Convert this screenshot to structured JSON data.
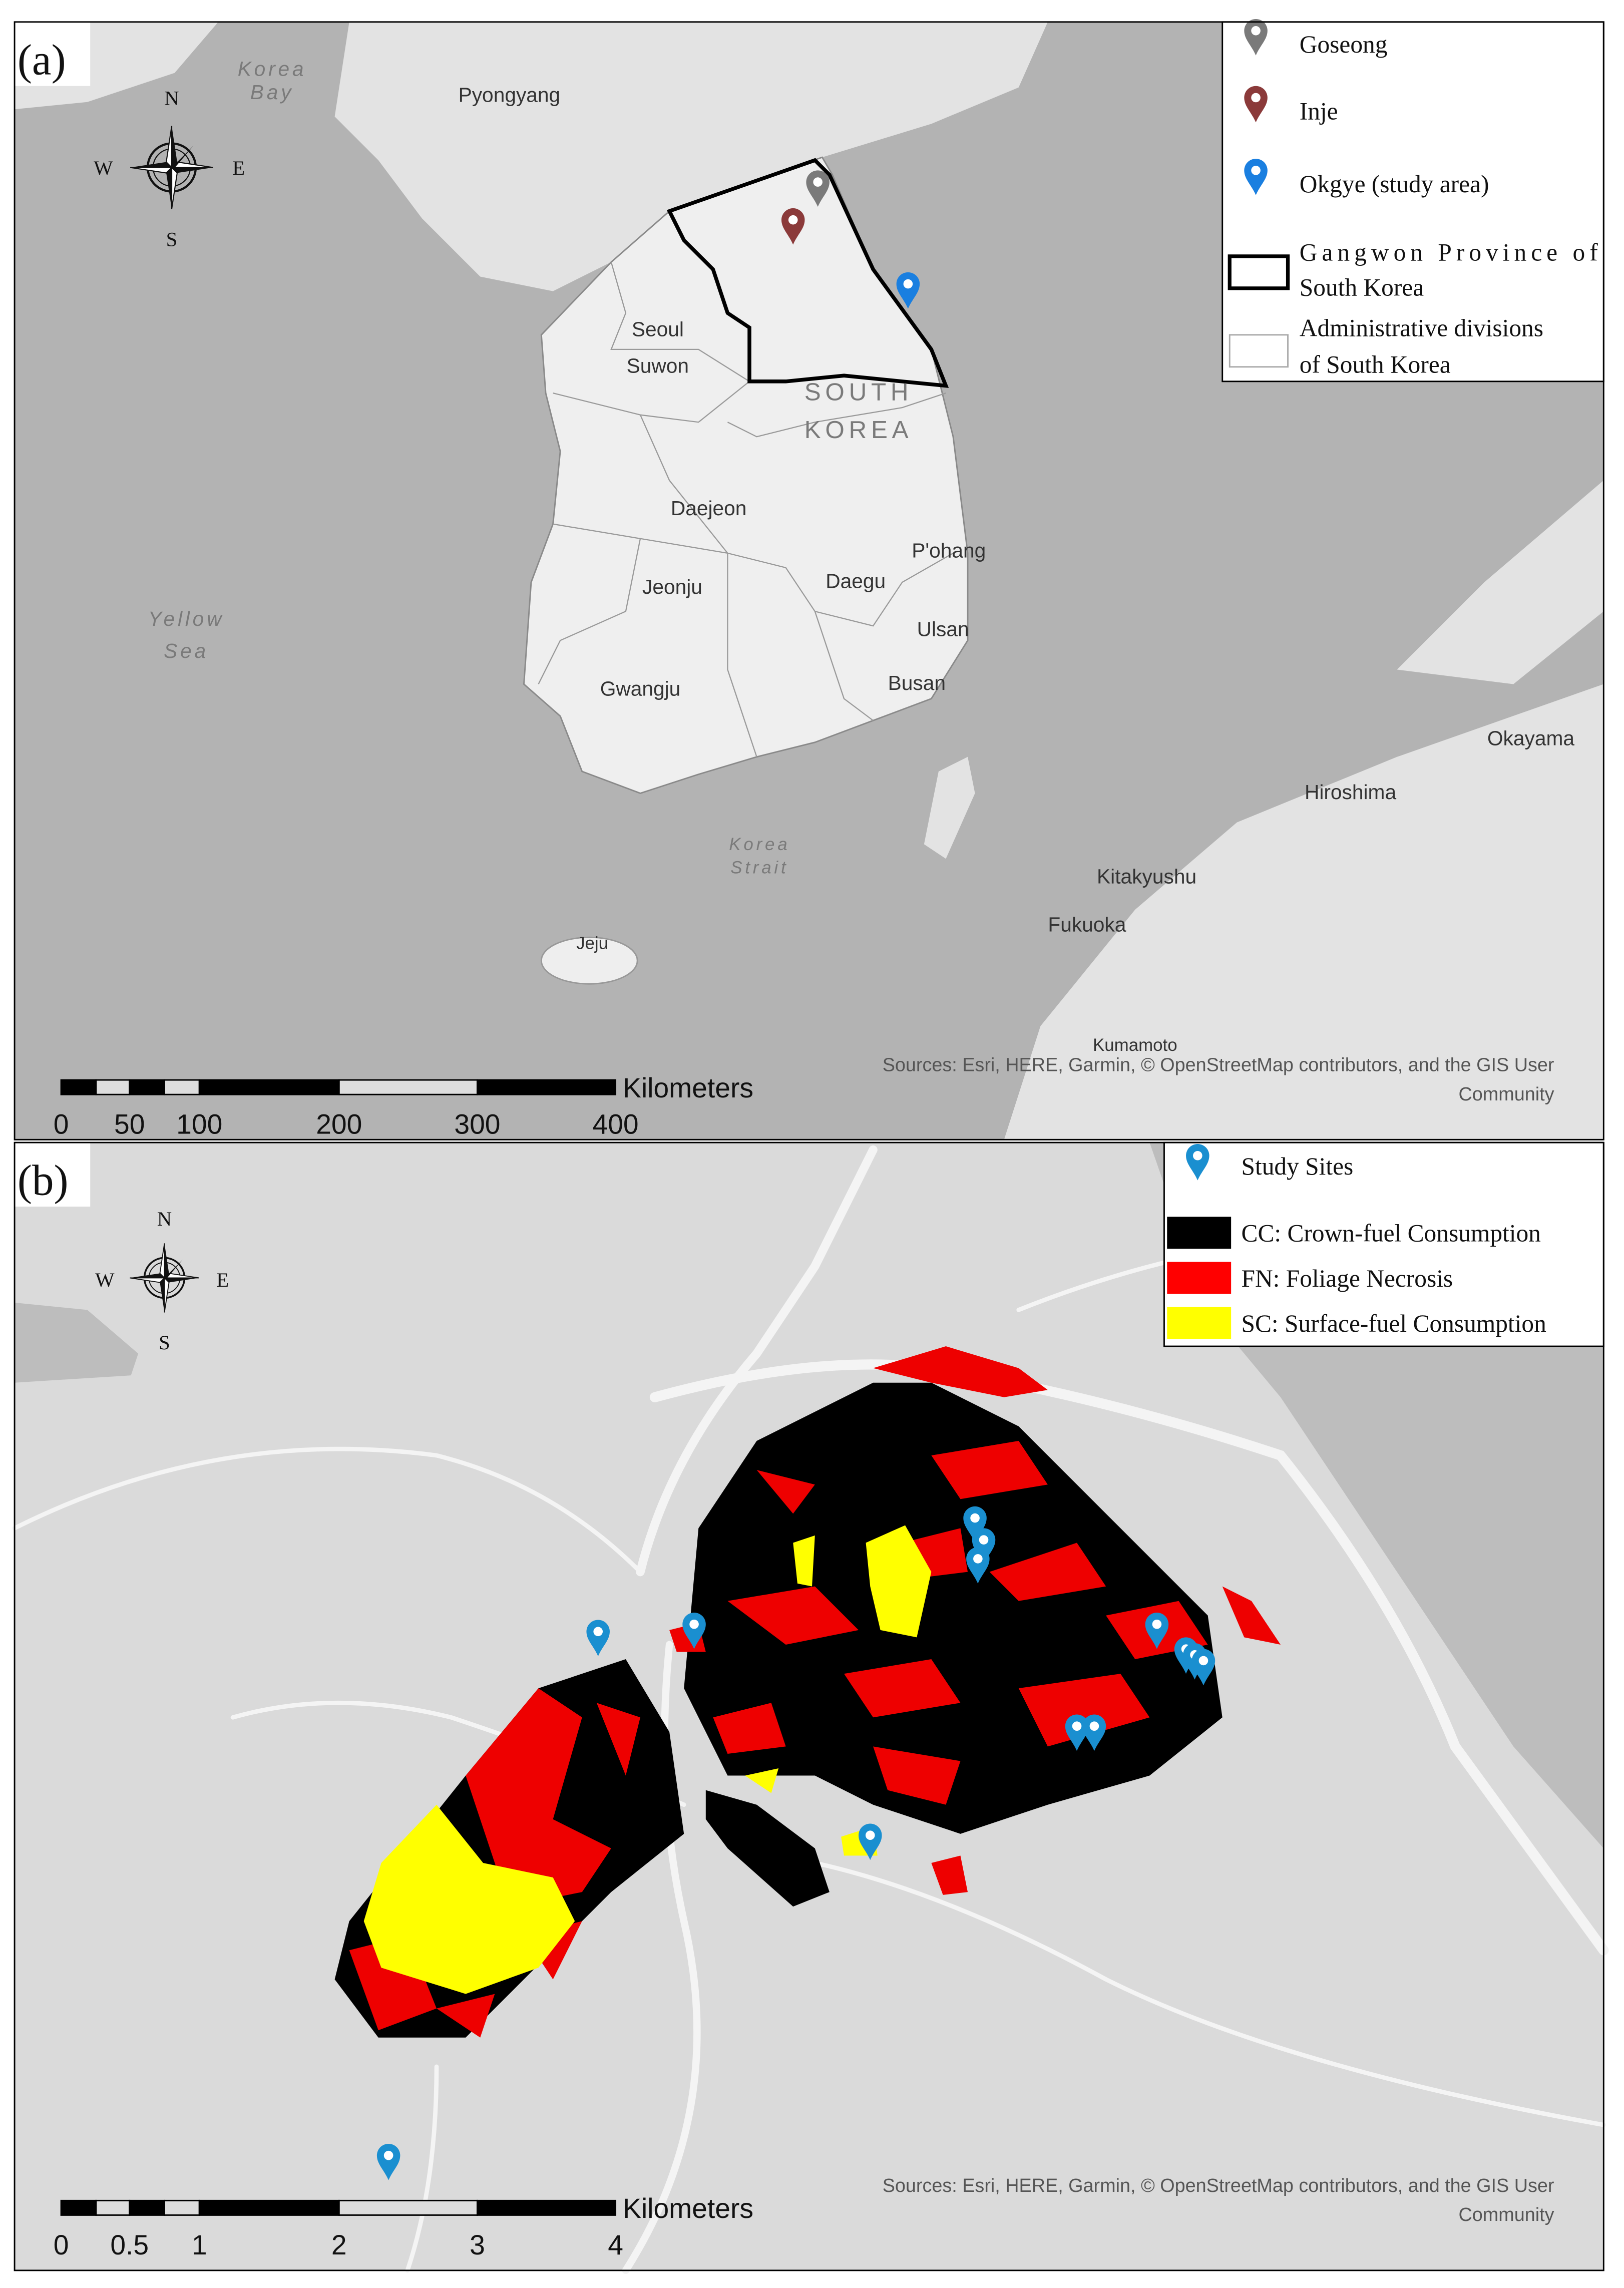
{
  "panel_a": {
    "label": "(a)",
    "compass": {
      "n": "N",
      "s": "S",
      "e": "E",
      "w": "W"
    },
    "places": {
      "korea_bay": [
        "Korea",
        "Bay"
      ],
      "pyongyang": "Pyongyang",
      "seoul": "Seoul",
      "suwon": "Suwon",
      "south_korea": [
        "SOUTH",
        "KOREA"
      ],
      "daejeon": "Daejeon",
      "pohang": "P'ohang",
      "daegu": "Daegu",
      "jeonju": "Jeonju",
      "ulsan": "Ulsan",
      "yellow_sea": [
        "Yellow",
        "Sea"
      ],
      "gwangju": "Gwangju",
      "busan": "Busan",
      "okayama": "Okayama",
      "hiroshima": "Hiroshima",
      "korea_strait": [
        "Korea",
        "Strait"
      ],
      "kitakyushu": "Kitakyushu",
      "fukuoka": "Fukuoka",
      "jeju": "Jeju",
      "kumamoto": "Kumamoto"
    },
    "legend": {
      "goseong": "Goseong",
      "inje": "Inje",
      "okgye": "Okgye (study area)",
      "gangwon": [
        "Gangwon Province of",
        "South Korea"
      ],
      "admin": [
        "Administrative divisions",
        "of South Korea"
      ]
    },
    "scale": {
      "unit": "Kilometers",
      "ticks": [
        "0",
        "50",
        "100",
        "200",
        "300",
        "400"
      ]
    },
    "sources": [
      "Sources: Esri, HERE, Garmin, © OpenStreetMap contributors, and the GIS User",
      "Community"
    ]
  },
  "panel_b": {
    "label": "(b)",
    "compass": {
      "n": "N",
      "s": "S",
      "e": "E",
      "w": "W"
    },
    "legend": {
      "sites": "Study Sites",
      "cc": "CC: Crown-fuel Consumption",
      "fn": "FN: Foliage Necrosis",
      "sc": "SC: Surface-fuel Consumption"
    },
    "scale": {
      "unit": "Kilometers",
      "ticks": [
        "0",
        "0.5",
        "1",
        "2",
        "3",
        "4"
      ]
    },
    "sources": [
      "Sources: Esri, HERE, Garmin, © OpenStreetMap contributors, and the GIS User",
      "Community"
    ]
  }
}
